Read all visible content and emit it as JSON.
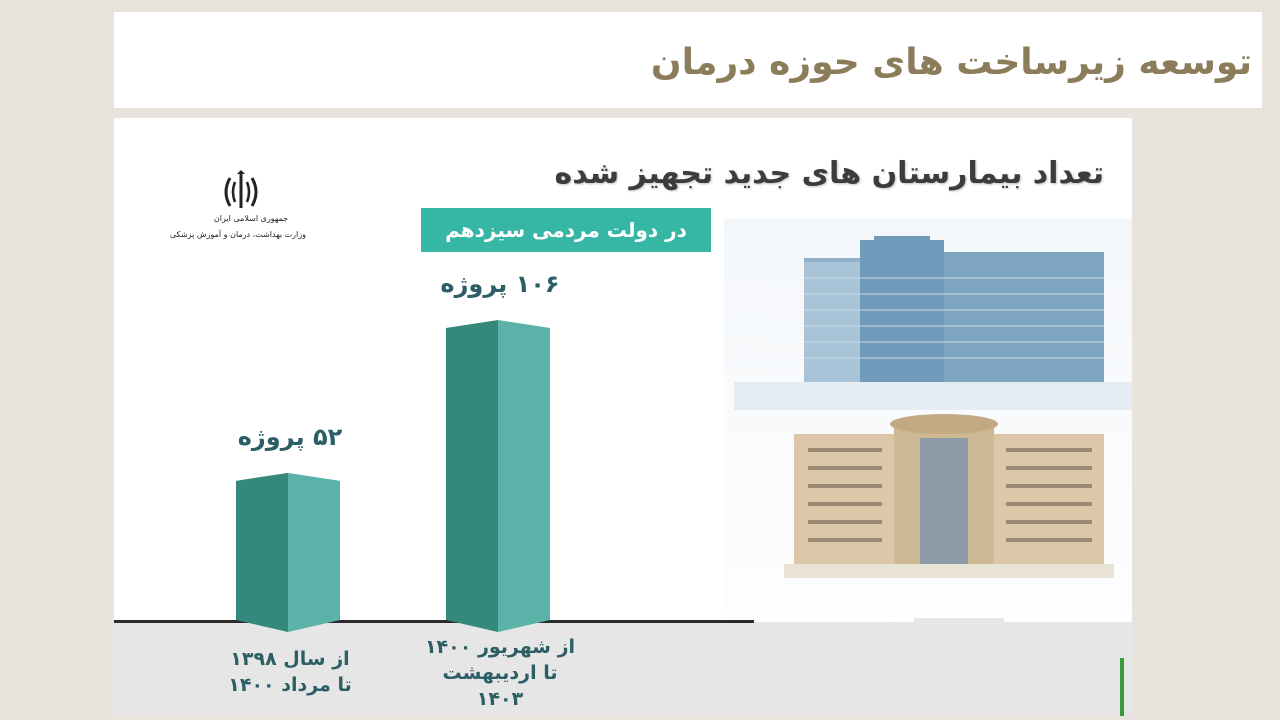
{
  "slide": {
    "title": "توسعه زیرساخت های حوزه درمان"
  },
  "infographic": {
    "logo": {
      "line1": "جمهوری اسلامی ایران",
      "line2": "وزارت بهداشت، درمان و آموزش پزشکی"
    },
    "heading": "تعداد بیمارستان های جدید تجهیز شده",
    "subtitle": "در دولت مردمی سیزدهم",
    "bar_color_dark": "#34897c",
    "bar_color_light": "#5ab2a8",
    "accent": "#36b6a4",
    "photos": [
      "hospital-glass-tower",
      "hospital-beige-building",
      "hospital-white-complex"
    ]
  },
  "chart_data": {
    "type": "bar",
    "categories": [
      [
        "از سال ۱۳۹۸",
        "تا مرداد ۱۴۰۰"
      ],
      [
        "از شهریور ۱۴۰۰",
        "تا اردیبهشت",
        "۱۴۰۳"
      ]
    ],
    "values": [
      52,
      106
    ],
    "value_labels": [
      "۵۲ پروژه",
      "۱۰۶ پروژه"
    ],
    "title": "تعداد بیمارستان های جدید تجهیز شده",
    "subtitle": "در دولت مردمی سیزدهم",
    "xlabel": "",
    "ylabel": "",
    "grid": false
  }
}
